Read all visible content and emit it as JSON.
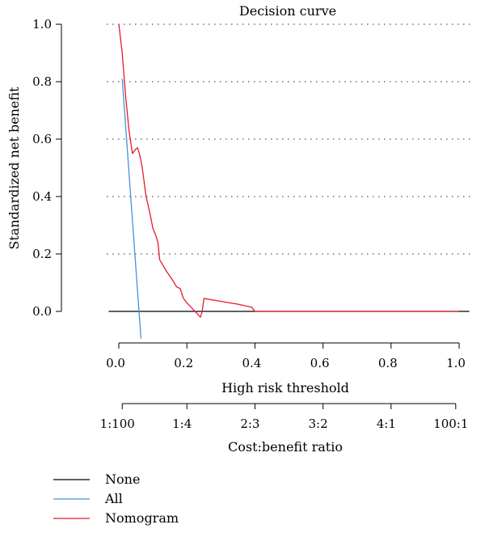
{
  "chart_data": {
    "type": "line",
    "title": "Decision curve",
    "xlabel": "High risk threshold",
    "ylabel": "Standardized net benefit",
    "xlim": [
      0,
      1
    ],
    "ylim": [
      -0.1,
      1.0
    ],
    "x_ticks": [
      0.0,
      0.2,
      0.4,
      0.6,
      0.8,
      1.0
    ],
    "x_tick_labels": [
      "0.0",
      "0.2",
      "0.4",
      "0.6",
      "0.8",
      "1.0"
    ],
    "y_ticks": [
      0.0,
      0.2,
      0.4,
      0.6,
      0.8,
      1.0
    ],
    "y_tick_labels": [
      "0.0",
      "0.2",
      "0.4",
      "0.6",
      "0.8",
      "1.0"
    ],
    "grid": "horizontal dotted at 0.2, 0.4, 0.6, 0.8, 1.0",
    "secondary_axis": {
      "label": "Cost:benefit ratio",
      "ticks": [
        0.01,
        0.2,
        0.4,
        0.6,
        0.8,
        0.99
      ],
      "tick_labels": [
        "1:100",
        "1:4",
        "2:3",
        "3:2",
        "4:1",
        "100:1"
      ]
    },
    "legend_position": "bottom-left",
    "series": [
      {
        "name": "None",
        "color": "#000000",
        "x": [
          -0.03,
          1.03
        ],
        "y": [
          0.0,
          0.0
        ]
      },
      {
        "name": "All",
        "color": "#4a90d9",
        "x": [
          0.01,
          0.065
        ],
        "y": [
          0.81,
          -0.095
        ]
      },
      {
        "name": "Nomogram",
        "color": "#e8192c",
        "x": [
          0.0,
          0.01,
          0.02,
          0.03,
          0.04,
          0.05,
          0.055,
          0.06,
          0.065,
          0.07,
          0.08,
          0.085,
          0.09,
          0.1,
          0.11,
          0.115,
          0.12,
          0.14,
          0.16,
          0.17,
          0.18,
          0.19,
          0.2,
          0.24,
          0.245,
          0.25,
          0.3,
          0.35,
          0.39,
          0.4,
          0.45,
          0.5,
          0.6,
          0.7,
          0.8,
          0.9,
          1.0
        ],
        "y": [
          1.0,
          0.9,
          0.75,
          0.63,
          0.55,
          0.565,
          0.57,
          0.55,
          0.525,
          0.49,
          0.4,
          0.375,
          0.35,
          0.29,
          0.26,
          0.24,
          0.18,
          0.14,
          0.105,
          0.085,
          0.08,
          0.045,
          0.03,
          -0.02,
          0.0,
          0.045,
          0.035,
          0.025,
          0.015,
          0.0,
          0.0,
          0.0,
          0.0,
          0.0,
          0.0,
          0.0,
          0.0
        ]
      }
    ]
  }
}
